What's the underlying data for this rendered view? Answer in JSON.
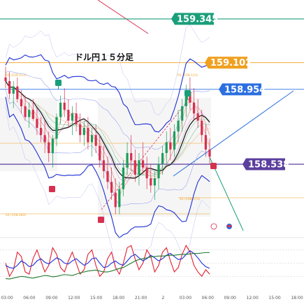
{
  "chart_data": {
    "type": "candlestick",
    "title": "ドル円１５分足",
    "time_labels": [
      "03:00",
      "06:00",
      "09:00",
      "12:00",
      "15:00",
      "18:00",
      "21:00",
      "2",
      "03:00",
      "06:00",
      "09:00",
      "12:00",
      "15:00",
      "18:00"
    ],
    "price_levels": [
      {
        "value": 159.345,
        "label": "159.345",
        "color": "#1a9e7a",
        "line": "#1a9e7a"
      },
      {
        "value": 159.102,
        "label": "159.102",
        "color": "#f0a020",
        "line": "#f0a020"
      },
      {
        "value": 158.954,
        "label": "158.954",
        "color": "#2b6fe0",
        "line": "#2b6fe0"
      },
      {
        "value": 158.538,
        "label": "158.538",
        "color": "#5b3f9e",
        "line": "#5b3f9e"
      }
    ],
    "small_labels": {
      "r1": "R1 (159.111)",
      "s1": "S1 (158.283)",
      "s1b": "S1 (158.371)"
    },
    "candles": [
      [
        159.02,
        159.08,
        158.96,
        159.0
      ],
      [
        159.0,
        159.05,
        158.9,
        158.93
      ],
      [
        158.93,
        159.0,
        158.85,
        158.97
      ],
      [
        158.97,
        159.02,
        158.88,
        158.9
      ],
      [
        158.9,
        158.95,
        158.82,
        158.86
      ],
      [
        158.86,
        158.92,
        158.78,
        158.8
      ],
      [
        158.8,
        158.88,
        158.74,
        158.84
      ],
      [
        158.84,
        158.9,
        158.78,
        158.79
      ],
      [
        158.79,
        158.85,
        158.7,
        158.74
      ],
      [
        158.74,
        158.8,
        158.66,
        158.7
      ],
      [
        158.7,
        158.78,
        158.6,
        158.66
      ],
      [
        158.66,
        158.72,
        158.55,
        158.6
      ],
      [
        158.6,
        158.7,
        158.52,
        158.68
      ],
      [
        158.68,
        158.82,
        158.64,
        158.8
      ],
      [
        158.8,
        158.92,
        158.76,
        158.88
      ],
      [
        158.88,
        158.96,
        158.8,
        158.84
      ],
      [
        158.84,
        158.9,
        158.74,
        158.78
      ],
      [
        158.78,
        158.86,
        158.7,
        158.82
      ],
      [
        158.82,
        158.88,
        158.72,
        158.76
      ],
      [
        158.76,
        158.82,
        158.66,
        158.7
      ],
      [
        158.7,
        158.78,
        158.64,
        158.74
      ],
      [
        158.74,
        158.8,
        158.62,
        158.66
      ],
      [
        158.66,
        158.74,
        158.58,
        158.7
      ],
      [
        158.7,
        158.76,
        158.6,
        158.64
      ],
      [
        158.64,
        158.7,
        158.52,
        158.56
      ],
      [
        158.56,
        158.64,
        158.46,
        158.5
      ],
      [
        158.5,
        158.58,
        158.4,
        158.44
      ],
      [
        158.44,
        158.52,
        158.34,
        158.38
      ],
      [
        158.38,
        158.46,
        158.26,
        158.3
      ],
      [
        158.3,
        158.44,
        158.26,
        158.4
      ],
      [
        158.4,
        158.56,
        158.36,
        158.52
      ],
      [
        158.52,
        158.66,
        158.48,
        158.6
      ],
      [
        158.6,
        158.7,
        158.5,
        158.56
      ],
      [
        158.56,
        158.62,
        158.44,
        158.48
      ],
      [
        158.48,
        158.6,
        158.42,
        158.56
      ],
      [
        158.56,
        158.66,
        158.48,
        158.52
      ],
      [
        158.52,
        158.58,
        158.4,
        158.46
      ],
      [
        158.46,
        158.54,
        158.38,
        158.42
      ],
      [
        158.42,
        158.5,
        158.34,
        158.46
      ],
      [
        158.46,
        158.58,
        158.4,
        158.54
      ],
      [
        158.54,
        158.64,
        158.48,
        158.6
      ],
      [
        158.6,
        158.72,
        158.54,
        158.66
      ],
      [
        158.66,
        158.74,
        158.56,
        158.62
      ],
      [
        158.62,
        158.76,
        158.58,
        158.72
      ],
      [
        158.72,
        158.84,
        158.66,
        158.78
      ],
      [
        158.78,
        158.9,
        158.72,
        158.86
      ],
      [
        158.86,
        158.98,
        158.8,
        158.94
      ],
      [
        158.94,
        159.02,
        158.84,
        158.88
      ],
      [
        158.88,
        158.96,
        158.78,
        158.82
      ],
      [
        158.82,
        158.9,
        158.74,
        158.78
      ],
      [
        158.78,
        158.84,
        158.66,
        158.7
      ],
      [
        158.7,
        158.76,
        158.58,
        158.62
      ],
      [
        158.62,
        158.68,
        158.54,
        158.58
      ]
    ],
    "indicator": {
      "red": [
        0.5,
        0.2,
        0.35,
        0.75,
        0.65,
        0.3,
        0.25,
        0.6,
        0.8,
        0.55,
        0.3,
        0.45,
        0.85,
        0.7,
        0.4,
        0.3,
        0.55,
        0.75,
        0.5,
        0.25,
        0.35,
        0.7,
        0.8,
        0.45,
        0.2,
        0.3,
        0.6,
        0.75,
        0.4,
        0.25,
        0.5,
        0.85,
        0.9,
        0.6,
        0.35,
        0.5,
        0.8,
        0.65,
        0.3,
        0.45,
        0.75,
        0.85,
        0.55,
        0.3,
        0.4,
        0.7,
        0.9,
        0.75,
        0.45,
        0.3,
        0.2,
        0.35,
        0.25
      ],
      "blue": [
        0.45,
        0.4,
        0.38,
        0.45,
        0.55,
        0.5,
        0.42,
        0.45,
        0.55,
        0.6,
        0.52,
        0.48,
        0.55,
        0.62,
        0.58,
        0.5,
        0.48,
        0.55,
        0.6,
        0.52,
        0.45,
        0.5,
        0.6,
        0.62,
        0.5,
        0.4,
        0.42,
        0.5,
        0.55,
        0.48,
        0.45,
        0.55,
        0.65,
        0.7,
        0.62,
        0.55,
        0.6,
        0.68,
        0.62,
        0.55,
        0.6,
        0.68,
        0.72,
        0.65,
        0.58,
        0.6,
        0.7,
        0.78,
        0.72,
        0.62,
        0.5,
        0.42,
        0.38
      ],
      "green": [
        0.15,
        0.14,
        0.16,
        0.18,
        0.2,
        0.19,
        0.17,
        0.16,
        0.18,
        0.2,
        0.22,
        0.21,
        0.19,
        0.2,
        0.22,
        0.24,
        0.23,
        0.22,
        0.25,
        0.28,
        0.3,
        0.32,
        0.33,
        0.34,
        0.32,
        0.3,
        0.3,
        0.32,
        0.35,
        0.38,
        0.4,
        0.45,
        0.5,
        0.55,
        0.58,
        0.6,
        0.62,
        0.64,
        0.65,
        0.66,
        0.66,
        0.67,
        0.68,
        0.68,
        0.69,
        0.7,
        0.7,
        0.71,
        0.72,
        0.72,
        0.73,
        0.74,
        0.74
      ]
    },
    "colors": {
      "bull": "#1a9e5a",
      "bear": "#d6304e",
      "band": "#1e2fd6",
      "ma": "#111111"
    }
  }
}
